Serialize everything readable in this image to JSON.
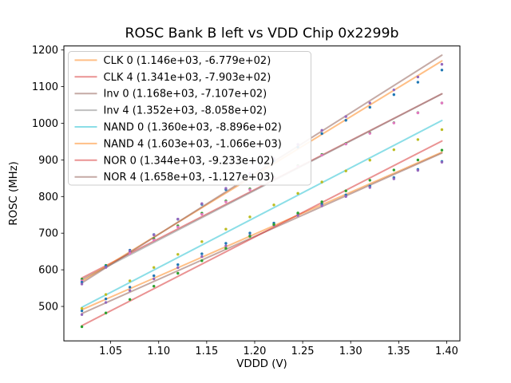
{
  "figure": {
    "background": "#ffffff",
    "title": "ROSC Bank B left vs VDD Chip 0x2299b"
  },
  "chart_data": {
    "type": "scatter",
    "subtype": "scatter points with linear fit lines",
    "title": "ROSC Bank B left vs VDD Chip 0x2299b",
    "xlabel": "VDDD (V)",
    "ylabel": "ROSC (MHz)",
    "xlim": [
      1.00125,
      1.41375
    ],
    "ylim": [
      406,
      1211
    ],
    "grid": false,
    "legend_position": "upper left",
    "axes": {
      "x_tick_values": [
        1.05,
        1.1,
        1.15,
        1.2,
        1.25,
        1.3,
        1.35,
        1.4
      ],
      "x_tick_labels": [
        "1.05",
        "1.10",
        "1.15",
        "1.20",
        "1.25",
        "1.30",
        "1.35",
        "1.40"
      ],
      "y_tick_values": [
        500,
        600,
        700,
        800,
        900,
        1000,
        1100,
        1200
      ],
      "y_tick_labels": [
        "500",
        "600",
        "700",
        "800",
        "900",
        "1000",
        "1100",
        "1200"
      ]
    },
    "x": [
      1.02,
      1.045,
      1.07,
      1.095,
      1.12,
      1.145,
      1.17,
      1.195,
      1.22,
      1.245,
      1.27,
      1.295,
      1.32,
      1.345,
      1.37,
      1.395
    ],
    "series": [
      {
        "name": "CLK 0",
        "legend_label": "CLK 0 (1.146e+03, -6.779e+02)",
        "fit_slope": 1146.0,
        "fit_intercept": -677.9,
        "line_color": "#ff7f0e",
        "line_alpha": 0.5,
        "marker_color": "#1f77b4",
        "y": [
          488.0,
          520.7,
          552.6,
          583.8,
          614.1,
          643.6,
          672.3,
          700.4,
          727.6,
          753.9,
          779.5,
          804.4,
          828.4,
          851.6,
          874.0,
          895.8
        ]
      },
      {
        "name": "CLK 4",
        "legend_label": "CLK 4 (1.341e+03, -7.903e+02)",
        "fit_slope": 1341.0,
        "fit_intercept": -790.3,
        "line_color": "#d62728",
        "line_alpha": 0.5,
        "marker_color": "#2ca02c",
        "y": [
          574.5,
          612.0,
          648.9,
          684.9,
          720.1,
          754.4,
          788.1,
          821.0,
          853.1,
          884.2,
          914.8,
          944.5,
          973.4,
          1001.4,
          1028.8,
          1055.4
        ]
      },
      {
        "name": "Inv 0",
        "legend_label": "Inv 0 (1.168e+03, -7.107e+02)",
        "fit_slope": 1168.0,
        "fit_intercept": -710.7,
        "line_color": "#8c564b",
        "line_alpha": 0.5,
        "marker_color": "#9467bd",
        "y": [
          477.7,
          510.9,
          543.4,
          575.1,
          606.0,
          636.0,
          665.3,
          693.9,
          721.7,
          748.5,
          774.7,
          800.1,
          824.7,
          848.4,
          871.4,
          893.7
        ]
      },
      {
        "name": "Inv 4",
        "legend_label": "Inv 4 (1.352e+03, -8.058e+02)",
        "fit_slope": 1352.0,
        "fit_intercept": -805.8,
        "line_color": "#7f7f7f",
        "line_alpha": 0.5,
        "marker_color": "#e377c2",
        "y": [
          570.2,
          608.0,
          645.1,
          681.4,
          716.9,
          751.5,
          785.4,
          818.6,
          851.0,
          882.4,
          913.2,
          943.2,
          972.4,
          1000.7,
          1028.3,
          1055.2
        ]
      },
      {
        "name": "NAND 0",
        "legend_label": "NAND 0 (1.360e+03, -8.896e+02)",
        "fit_slope": 1360.0,
        "fit_intercept": -889.6,
        "line_color": "#17becf",
        "line_alpha": 0.5,
        "marker_color": "#bcbd22",
        "y": [
          494.6,
          532.6,
          569.9,
          606.4,
          642.1,
          676.9,
          711.0,
          744.4,
          777.0,
          808.6,
          839.6,
          869.8,
          899.2,
          927.7,
          955.5,
          982.6
        ]
      },
      {
        "name": "NAND 4",
        "legend_label": "NAND 4 (1.603e+03, -1.066e+03)",
        "fit_slope": 1603.0,
        "fit_intercept": -1066.0,
        "line_color": "#ff7f0e",
        "line_alpha": 0.5,
        "marker_color": "#1f77b4",
        "y": [
          566.1,
          610.1,
          653.5,
          696.1,
          737.9,
          778.7,
          818.9,
          858.4,
          897.1,
          934.7,
          971.8,
          1008.1,
          1043.6,
          1078.1,
          1112.0,
          1145.2
        ]
      },
      {
        "name": "NOR 0",
        "legend_label": "NOR 0 (1.344e+03, -9.233e+02)",
        "fit_slope": 1344.0,
        "fit_intercept": -923.3,
        "line_color": "#d62728",
        "line_alpha": 0.5,
        "marker_color": "#2ca02c",
        "y": [
          444.6,
          482.2,
          519.1,
          555.2,
          590.5,
          624.8,
          658.5,
          691.5,
          723.8,
          755.0,
          785.6,
          815.4,
          844.4,
          872.5,
          899.9,
          926.6
        ]
      },
      {
        "name": "NOR 4",
        "legend_label": "NOR 4 (1.658e+03, -1.127e+03)",
        "fit_slope": 1658.0,
        "fit_intercept": -1127.0,
        "line_color": "#8c564b",
        "line_alpha": 0.5,
        "marker_color": "#9467bd",
        "y": [
          561.2,
          606.6,
          651.4,
          695.3,
          738.5,
          780.7,
          822.3,
          863.1,
          903.2,
          942.2,
          980.7,
          1018.3,
          1055.2,
          1091.1,
          1126.4,
          1160.9
        ]
      }
    ],
    "style": {
      "spine_color": "#000000",
      "tick_color": "#000000",
      "legend_border_color": "#cccccc",
      "legend_background": "#ffffff"
    }
  }
}
